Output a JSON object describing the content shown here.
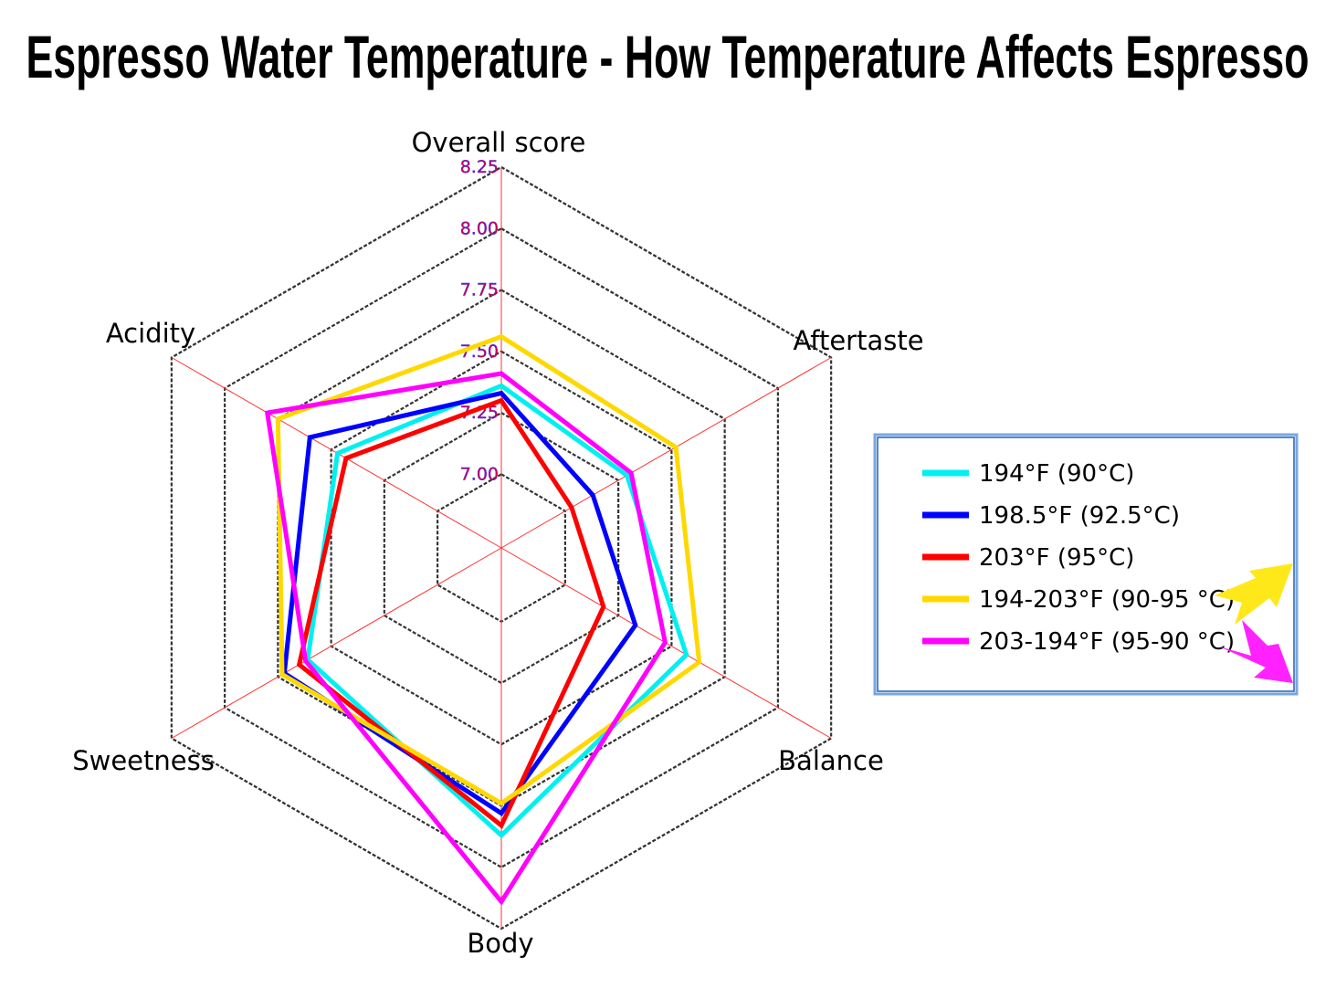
{
  "chart_data": {
    "type": "radar",
    "title": "Espresso Water Temperature - How Temperature Affects Espresso",
    "axes": [
      "Overall score",
      "Aftertaste",
      "Balance",
      "Body",
      "Sweetness",
      "Acidity"
    ],
    "tick_labels": [
      "7.00",
      "7.25",
      "7.50",
      "7.75",
      "8.00",
      "8.25"
    ],
    "ticks": [
      7.0,
      7.25,
      7.5,
      7.75,
      8.0,
      8.25
    ],
    "range": [
      6.7,
      8.25
    ],
    "grid": true,
    "legend_position": "right",
    "series": [
      {
        "name": "194°F (90°C)",
        "color": "#00f0f0",
        "values": [
          7.36,
          7.29,
          7.57,
          7.87,
          7.61,
          7.47
        ]
      },
      {
        "name": "198.5°F (92.5°C)",
        "color": "#0000ff",
        "values": [
          7.33,
          7.13,
          7.33,
          7.78,
          7.72,
          7.6
        ]
      },
      {
        "name": "203°F (95°C)",
        "color": "#ff0000",
        "values": [
          7.3,
          7.03,
          7.18,
          7.83,
          7.65,
          7.43
        ]
      },
      {
        "name": "194-203°F (90-95 °C)",
        "color": "#ffd800",
        "values": [
          7.56,
          7.52,
          7.63,
          7.74,
          7.73,
          7.75
        ]
      },
      {
        "name": "203-194°F (95-90 °C)",
        "color": "#ff00ff",
        "values": [
          7.41,
          7.31,
          7.47,
          8.14,
          7.62,
          7.8
        ]
      }
    ],
    "annotations": {
      "arrow_up_color": "#ffe81a",
      "arrow_down_color": "#ff22ff"
    }
  }
}
